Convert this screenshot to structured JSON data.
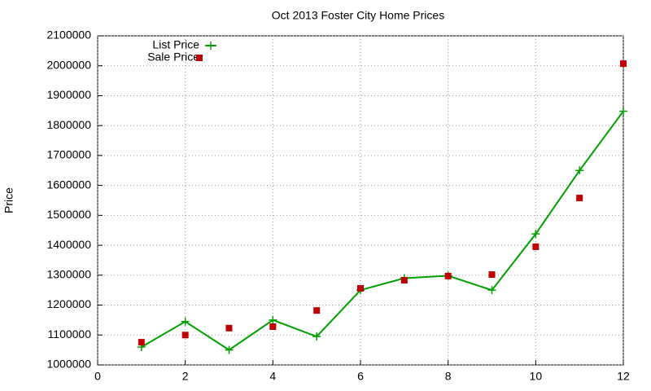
{
  "chart_data": {
    "type": "line",
    "title": "Oct 2013 Foster City Home Prices",
    "y_label": "Price",
    "x": [
      1,
      2,
      3,
      4,
      5,
      6,
      7,
      8,
      9,
      10,
      11,
      12
    ],
    "series": [
      {
        "name": "List Price",
        "color": "#00a000",
        "style": "linespoints",
        "values": [
          1060000,
          1145000,
          1050000,
          1150000,
          1095000,
          1250000,
          1290000,
          1298000,
          1250000,
          1438000,
          1650000,
          1848000
        ]
      },
      {
        "name": "Sale Price",
        "color": "#c00000",
        "style": "points",
        "values": [
          1076000,
          1100000,
          1123000,
          1128000,
          1182000,
          1256000,
          1283000,
          1297000,
          1302000,
          1395000,
          1558000,
          2007000
        ]
      }
    ],
    "xlim": [
      0,
      12
    ],
    "xticks": [
      0,
      2,
      4,
      6,
      8,
      10,
      12
    ],
    "ylim": [
      1000000,
      2100000
    ],
    "yticks": [
      1000000,
      1100000,
      1200000,
      1300000,
      1400000,
      1500000,
      1600000,
      1700000,
      1800000,
      1900000,
      2000000,
      2100000
    ],
    "grid": true,
    "legend": "top-left"
  }
}
